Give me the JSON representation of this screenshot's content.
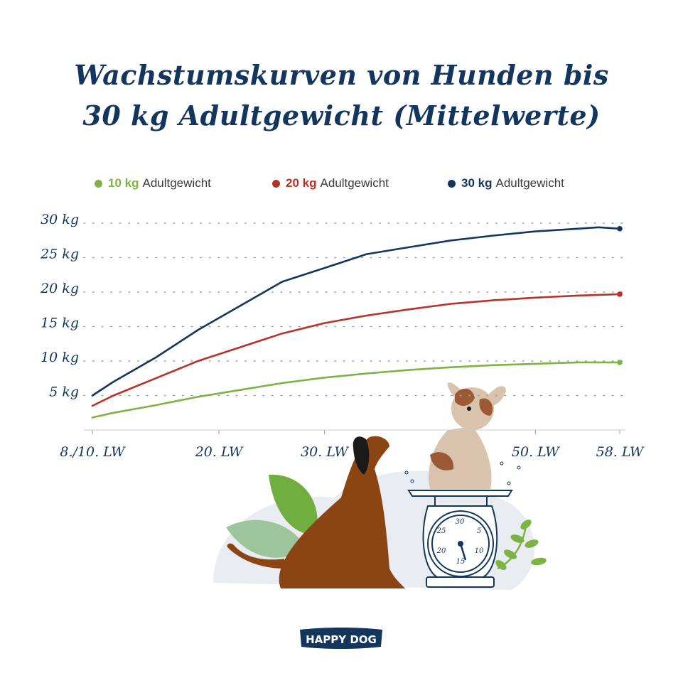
{
  "title": {
    "line1": "Wachstumskurven von Hunden bis",
    "line2": "30 kg Adultgewicht (Mittelwerte)"
  },
  "brand": "HAPPY DOG",
  "scale_dial": [
    "30",
    "5",
    "10",
    "15",
    "20",
    "25"
  ],
  "colors": {
    "navy": "#13365f",
    "green": "#7db342",
    "red": "#b8322a",
    "dog_brown": "#8b4513",
    "puppy_beige": "#d9c3ad",
    "grid": "#9aa3ad"
  },
  "chart_data": {
    "type": "line",
    "title": "Wachstumskurven von Hunden bis 30 kg Adultgewicht (Mittelwerte)",
    "xlabel": "",
    "ylabel": "",
    "x_ticks": [
      {
        "x": 8,
        "label": "8./10. LW"
      },
      {
        "x": 20,
        "label": "20. LW"
      },
      {
        "x": 30,
        "label": "30. LW"
      },
      {
        "x": 50,
        "label": "50. LW"
      },
      {
        "x": 58,
        "label": "58. LW"
      }
    ],
    "y_ticks": [
      {
        "y": 5,
        "label": "5 kg"
      },
      {
        "y": 10,
        "label": "10 kg"
      },
      {
        "y": 15,
        "label": "15 kg"
      },
      {
        "y": 20,
        "label": "20 kg"
      },
      {
        "y": 25,
        "label": "25 kg"
      },
      {
        "y": 30,
        "label": "30 kg"
      }
    ],
    "xlim": [
      8,
      58
    ],
    "ylim": [
      0,
      30
    ],
    "grid": "horizontal dotted",
    "legend_position": "top",
    "series": [
      {
        "name": "10 kg",
        "legend_suffix": "Adultgewicht",
        "color": "#7db342",
        "x": [
          8,
          10,
          14,
          18,
          22,
          26,
          30,
          34,
          38,
          42,
          46,
          50,
          54,
          58
        ],
        "y": [
          1.8,
          2.5,
          3.6,
          4.8,
          5.8,
          6.8,
          7.6,
          8.2,
          8.7,
          9.1,
          9.4,
          9.6,
          9.8,
          9.8
        ]
      },
      {
        "name": "20 kg",
        "legend_suffix": "Adultgewicht",
        "color": "#b8322a",
        "x": [
          8,
          10,
          14,
          18,
          22,
          26,
          30,
          34,
          38,
          42,
          46,
          50,
          54,
          58
        ],
        "y": [
          3.5,
          5.0,
          7.5,
          10.0,
          12.0,
          14.0,
          15.5,
          16.6,
          17.5,
          18.3,
          18.8,
          19.2,
          19.5,
          19.7
        ]
      },
      {
        "name": "30 kg",
        "legend_suffix": "Adultgewicht",
        "color": "#13365f",
        "x": [
          8,
          10,
          14,
          18,
          22,
          26,
          30,
          34,
          38,
          42,
          46,
          50,
          54,
          56,
          58
        ],
        "y": [
          5.0,
          7.0,
          10.5,
          14.5,
          18.0,
          21.5,
          23.5,
          25.5,
          26.5,
          27.5,
          28.2,
          28.8,
          29.2,
          29.4,
          29.2
        ]
      }
    ]
  }
}
